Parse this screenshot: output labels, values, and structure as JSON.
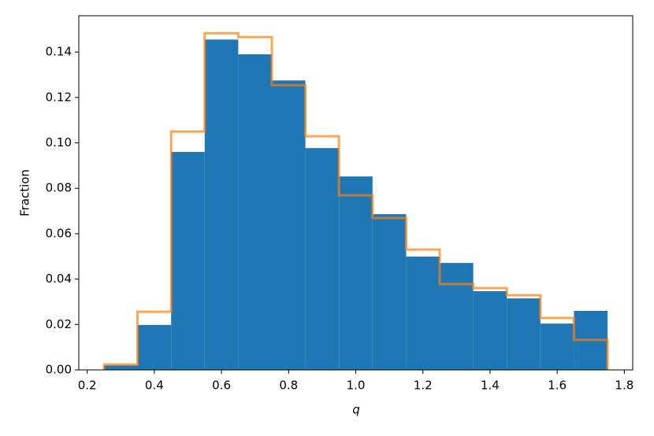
{
  "chart_data": {
    "type": "histogram",
    "x_label": "q",
    "y_label": "Fraction",
    "bins": [
      0.25,
      0.35,
      0.45,
      0.55,
      0.65,
      0.75,
      0.85,
      0.95,
      1.05,
      1.15,
      1.25,
      1.35,
      1.45,
      1.55,
      1.65,
      1.75
    ],
    "series": [
      {
        "style": "filled",
        "color": "#1f77b4",
        "values": [
          0.002,
          0.0198,
          0.096,
          0.1455,
          0.139,
          0.1275,
          0.0977,
          0.0852,
          0.0686,
          0.0499,
          0.0471,
          0.0347,
          0.0315,
          0.0204,
          0.026
        ]
      },
      {
        "style": "step",
        "color": "#ff7f0e",
        "values": [
          0.0024,
          0.0256,
          0.105,
          0.1483,
          0.1466,
          0.1254,
          0.1029,
          0.0769,
          0.0669,
          0.053,
          0.0378,
          0.036,
          0.0329,
          0.0229,
          0.0132
        ]
      }
    ],
    "xlim": [
      0.175,
      1.825
    ],
    "ylim": [
      0,
      0.156
    ],
    "xticks": [
      0.2,
      0.4,
      0.6,
      0.8,
      {
        "value": 1,
        "label": "1.0"
      },
      1.2,
      1.4,
      1.6,
      1.8
    ],
    "yticks": [
      {
        "value": 0,
        "label": "0.00"
      },
      {
        "value": 0.02,
        "label": "0.02"
      },
      {
        "value": 0.04,
        "label": "0.04"
      },
      {
        "value": 0.06,
        "label": "0.06"
      },
      {
        "value": 0.08,
        "label": "0.08"
      },
      {
        "value": 0.1,
        "label": "0.10"
      },
      {
        "value": 0.12,
        "label": "0.12"
      },
      {
        "value": 0.14,
        "label": "0.14"
      }
    ]
  }
}
